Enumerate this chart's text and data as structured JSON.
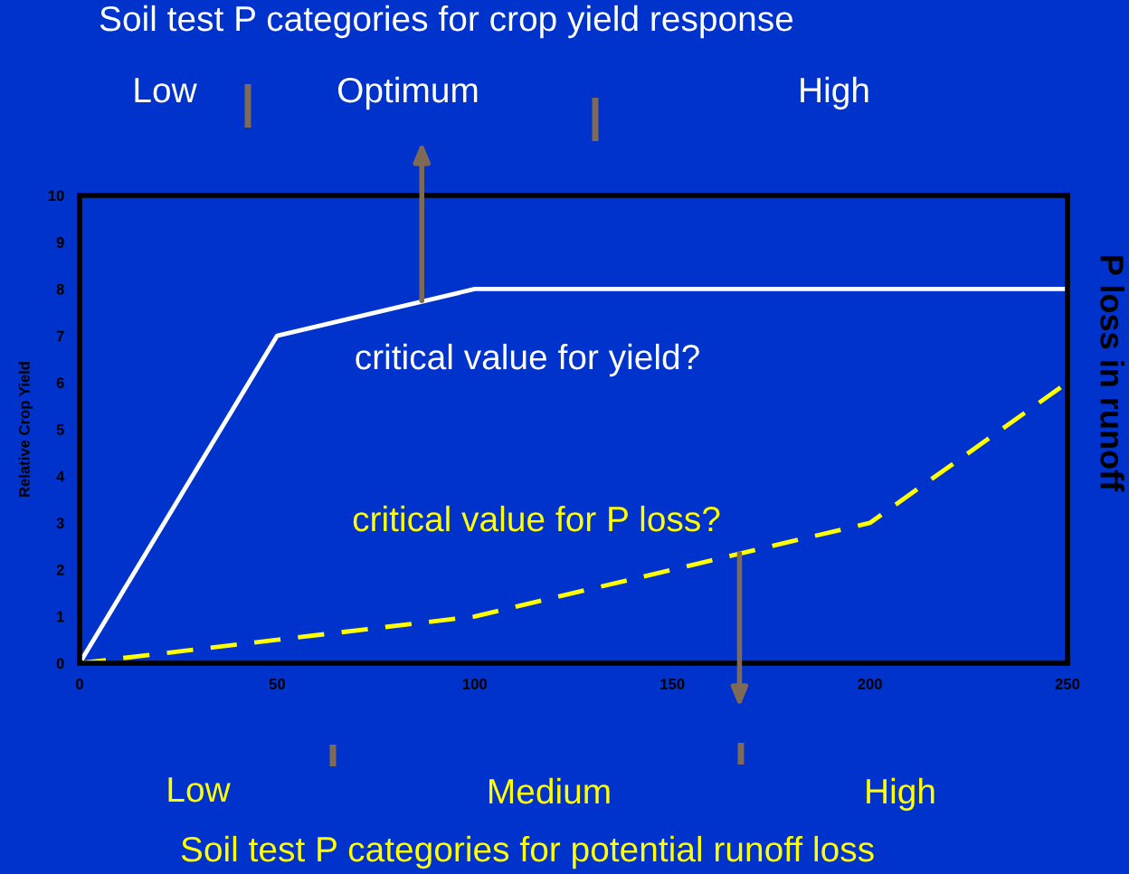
{
  "chart_data": {
    "type": "line",
    "title": "Soil test P categories for crop yield response",
    "ylabel": "Relative Crop Yield",
    "y2label": "P loss in runoff",
    "x": [
      0,
      50,
      100,
      200,
      250
    ],
    "series": [
      {
        "color": "#ffffff",
        "line_style": "solid",
        "values": [
          0,
          7,
          8,
          8,
          8
        ]
      },
      {
        "color": "#ffff00",
        "line_style": "dashed",
        "values": [
          0,
          0.5,
          1,
          3,
          6
        ]
      }
    ],
    "xlim": [
      0,
      250
    ],
    "xticks": [
      0,
      50,
      100,
      150,
      200,
      250
    ],
    "ylim": [
      0,
      10
    ],
    "yticks": [
      0,
      1,
      2,
      3,
      4,
      5,
      6,
      7,
      8,
      9,
      10
    ],
    "annotations": [
      "Low",
      "Optimum",
      "High",
      {
        "text": "critical value for yield?",
        "x": 86.6,
        "y": 7.7
      },
      {
        "text": "critical value for P loss?",
        "x": 167,
        "y": 2.4
      },
      "Low",
      "Medium",
      "High",
      "Soil test P categories for potential runoff loss"
    ],
    "grid": false,
    "legend": false,
    "marker": "none"
  }
}
